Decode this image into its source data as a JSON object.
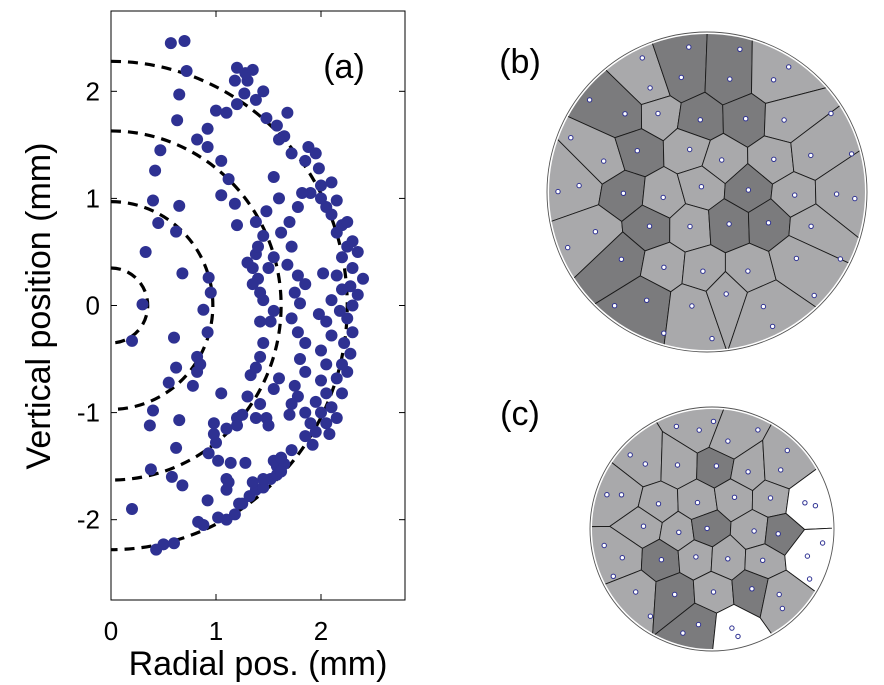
{
  "chart_data": [
    {
      "type": "scatter",
      "panel_label": "(a)",
      "xlabel": "Radial pos. (mm)",
      "ylabel": "Vertical position (mm)",
      "xlim": [
        0,
        2.8
      ],
      "ylim": [
        -2.75,
        2.75
      ],
      "xticks": [
        "0",
        "1",
        "2"
      ],
      "xtick_values": [
        0,
        1,
        2
      ],
      "yticks": [
        "-2",
        "-1",
        "0",
        "1",
        "2"
      ],
      "ytick_values": [
        -2,
        -1,
        0,
        1,
        2
      ],
      "grid": false,
      "marker_color": "#2e3192",
      "guide_arcs": [
        {
          "radius_x": 0.35,
          "radius_y": 0.35
        },
        {
          "radius_x": 0.97,
          "radius_y": 0.97
        },
        {
          "radius_x": 1.62,
          "radius_y": 1.63
        },
        {
          "radius_x": 2.25,
          "radius_y": 2.28
        }
      ],
      "points": [
        [
          0.57,
          2.45
        ],
        [
          0.7,
          2.47
        ],
        [
          0.72,
          2.19
        ],
        [
          0.65,
          1.97
        ],
        [
          0.63,
          1.73
        ],
        [
          0.47,
          1.45
        ],
        [
          0.42,
          1.26
        ],
        [
          0.4,
          0.98
        ],
        [
          0.65,
          0.93
        ],
        [
          0.45,
          0.77
        ],
        [
          0.62,
          0.69
        ],
        [
          0.33,
          0.5
        ],
        [
          0.68,
          0.3
        ],
        [
          0.3,
          0.01
        ],
        [
          0.2,
          -0.33
        ],
        [
          0.93,
          0.26
        ],
        [
          0.95,
          0.12
        ],
        [
          0.88,
          -0.04
        ],
        [
          0.92,
          -0.25
        ],
        [
          0.6,
          -0.3
        ],
        [
          0.82,
          -0.48
        ],
        [
          0.85,
          -0.55
        ],
        [
          0.62,
          -0.58
        ],
        [
          0.55,
          -0.72
        ],
        [
          0.78,
          -0.75
        ],
        [
          0.4,
          -0.98
        ],
        [
          0.37,
          -1.12
        ],
        [
          0.65,
          -1.07
        ],
        [
          0.62,
          -1.33
        ],
        [
          0.38,
          -1.53
        ],
        [
          0.58,
          -1.6
        ],
        [
          0.68,
          -1.68
        ],
        [
          0.2,
          -1.9
        ],
        [
          0.5,
          -2.23
        ],
        [
          0.43,
          -2.28
        ],
        [
          0.6,
          -2.22
        ],
        [
          0.83,
          -2.02
        ],
        [
          0.88,
          -2.05
        ],
        [
          1.02,
          -1.98
        ],
        [
          1.1,
          -2.0
        ],
        [
          1.18,
          -1.95
        ],
        [
          1.25,
          -1.85
        ],
        [
          1.32,
          -1.78
        ],
        [
          1.38,
          -1.72
        ],
        [
          1.45,
          -1.7
        ],
        [
          1.52,
          -1.62
        ],
        [
          1.58,
          -1.5
        ],
        [
          1.65,
          -1.48
        ],
        [
          1.55,
          -1.45
        ],
        [
          1.28,
          -1.47
        ],
        [
          1.14,
          -1.47
        ],
        [
          1.1,
          -1.62
        ],
        [
          0.93,
          -1.38
        ],
        [
          1.0,
          -1.28
        ],
        [
          0.98,
          -1.1
        ],
        [
          1.2,
          -1.05
        ],
        [
          1.25,
          -1.02
        ],
        [
          1.38,
          -1.05
        ],
        [
          1.05,
          -0.82
        ],
        [
          1.33,
          -0.65
        ],
        [
          1.38,
          -0.58
        ],
        [
          1.42,
          -0.48
        ],
        [
          1.45,
          -0.35
        ],
        [
          1.52,
          -0.15
        ],
        [
          1.55,
          -0.05
        ],
        [
          1.45,
          0.05
        ],
        [
          1.42,
          0.12
        ],
        [
          1.4,
          0.25
        ],
        [
          1.35,
          0.35
        ],
        [
          1.38,
          0.48
        ],
        [
          1.4,
          0.55
        ],
        [
          1.45,
          0.65
        ],
        [
          1.2,
          0.75
        ],
        [
          1.18,
          0.95
        ],
        [
          1.05,
          1.03
        ],
        [
          1.12,
          1.18
        ],
        [
          1.05,
          1.35
        ],
        [
          0.92,
          1.48
        ],
        [
          0.82,
          1.55
        ],
        [
          0.92,
          1.65
        ],
        [
          1.0,
          1.82
        ],
        [
          1.1,
          1.8
        ],
        [
          1.2,
          1.88
        ],
        [
          1.27,
          1.98
        ],
        [
          1.3,
          2.1
        ],
        [
          1.2,
          2.22
        ],
        [
          1.28,
          2.17
        ],
        [
          1.38,
          1.92
        ],
        [
          1.48,
          1.75
        ],
        [
          1.58,
          1.68
        ],
        [
          1.65,
          1.58
        ],
        [
          1.72,
          1.42
        ],
        [
          1.85,
          1.35
        ],
        [
          1.88,
          1.48
        ],
        [
          1.95,
          1.42
        ],
        [
          1.98,
          1.28
        ],
        [
          2.0,
          1.12
        ],
        [
          1.9,
          1.05
        ],
        [
          1.82,
          1.05
        ],
        [
          1.78,
          0.92
        ],
        [
          1.7,
          0.78
        ],
        [
          1.62,
          0.68
        ],
        [
          1.72,
          0.55
        ],
        [
          1.68,
          0.38
        ],
        [
          1.78,
          0.28
        ],
        [
          1.85,
          0.2
        ],
        [
          1.75,
          0.12
        ],
        [
          1.8,
          0.02
        ],
        [
          1.72,
          -0.12
        ],
        [
          1.78,
          -0.25
        ],
        [
          1.85,
          -0.35
        ],
        [
          1.8,
          -0.5
        ],
        [
          1.85,
          -0.62
        ],
        [
          1.75,
          -0.75
        ],
        [
          1.78,
          -0.85
        ],
        [
          1.72,
          -0.92
        ],
        [
          1.85,
          -1.0
        ],
        [
          1.7,
          -1.02
        ],
        [
          1.9,
          -1.1
        ],
        [
          1.95,
          -1.18
        ],
        [
          2.05,
          -1.1
        ],
        [
          2.15,
          -1.05
        ],
        [
          2.1,
          -0.95
        ],
        [
          2.2,
          -0.82
        ],
        [
          2.15,
          -0.68
        ],
        [
          2.25,
          -0.62
        ],
        [
          2.2,
          -0.55
        ],
        [
          2.28,
          -0.45
        ],
        [
          2.22,
          -0.35
        ],
        [
          2.3,
          -0.25
        ],
        [
          2.25,
          -0.12
        ],
        [
          2.3,
          0.0
        ],
        [
          2.35,
          0.1
        ],
        [
          2.28,
          0.18
        ],
        [
          2.4,
          0.25
        ],
        [
          2.3,
          0.35
        ],
        [
          2.2,
          0.45
        ],
        [
          2.25,
          0.55
        ],
        [
          2.15,
          0.68
        ],
        [
          2.2,
          0.75
        ],
        [
          2.1,
          0.85
        ],
        [
          2.05,
          0.92
        ],
        [
          2.0,
          1.0
        ],
        [
          2.1,
          1.15
        ],
        [
          2.15,
          0.98
        ],
        [
          2.25,
          0.78
        ],
        [
          2.3,
          0.6
        ],
        [
          2.35,
          0.5
        ],
        [
          2.15,
          0.28
        ],
        [
          2.2,
          0.15
        ],
        [
          2.1,
          0.05
        ],
        [
          2.18,
          -0.05
        ],
        [
          2.05,
          -0.15
        ],
        [
          2.1,
          -0.28
        ],
        [
          2.0,
          -0.42
        ],
        [
          2.05,
          -0.55
        ],
        [
          2.0,
          -0.7
        ],
        [
          2.05,
          -0.82
        ],
        [
          1.95,
          -0.9
        ],
        [
          2.0,
          -1.0
        ],
        [
          2.08,
          -1.2
        ],
        [
          1.92,
          -1.3
        ],
        [
          1.85,
          -1.22
        ],
        [
          1.72,
          -1.35
        ],
        [
          1.58,
          -1.58
        ],
        [
          1.45,
          -1.62
        ],
        [
          1.62,
          -1.55
        ],
        [
          1.35,
          -1.65
        ],
        [
          1.22,
          -1.85
        ],
        [
          0.82,
          -0.62
        ],
        [
          1.5,
          0.35
        ],
        [
          1.55,
          0.45
        ],
        [
          1.6,
          1.55
        ],
        [
          1.68,
          1.8
        ],
        [
          1.18,
          2.1
        ],
        [
          1.35,
          2.2
        ],
        [
          1.45,
          2.0
        ],
        [
          1.55,
          1.2
        ],
        [
          1.6,
          1.0
        ],
        [
          1.48,
          0.88
        ],
        [
          1.3,
          0.4
        ],
        [
          1.35,
          0.2
        ],
        [
          1.38,
          0.78
        ],
        [
          1.42,
          -0.15
        ],
        [
          1.55,
          -0.78
        ],
        [
          1.6,
          -0.68
        ],
        [
          1.3,
          -0.85
        ],
        [
          1.42,
          -0.92
        ],
        [
          1.48,
          -1.05
        ],
        [
          1.5,
          -1.12
        ],
        [
          1.2,
          -1.12
        ],
        [
          1.1,
          -1.15
        ],
        [
          0.98,
          -1.2
        ],
        [
          1.02,
          -1.45
        ],
        [
          1.12,
          -1.65
        ],
        [
          1.1,
          -1.72
        ],
        [
          0.92,
          -1.82
        ],
        [
          1.62,
          -1.42
        ],
        [
          1.98,
          -0.08
        ],
        [
          2.02,
          0.3
        ]
      ]
    },
    {
      "type": "diagram",
      "panel_label": "(b)",
      "colors": {
        "dark": "#7b7b7d",
        "light": "#a9a9ab",
        "open": "#ffffff",
        "site": "#2e3192"
      }
    },
    {
      "type": "diagram",
      "panel_label": "(c)",
      "colors": {
        "dark": "#7b7b7d",
        "light": "#a9a9ab",
        "open": "#ffffff",
        "site": "#2e3192"
      }
    }
  ]
}
